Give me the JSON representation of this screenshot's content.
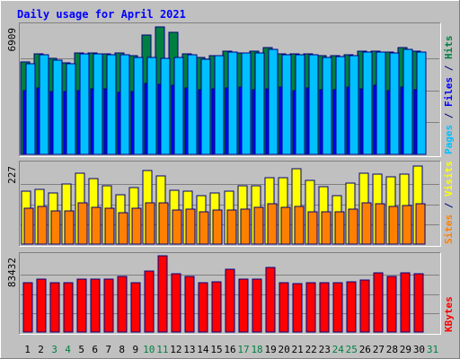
{
  "chart_data": {
    "type": "bar",
    "title": "Daily usage for April 2021",
    "categories": [
      "1",
      "2",
      "3",
      "4",
      "5",
      "6",
      "7",
      "8",
      "9",
      "10",
      "11",
      "12",
      "13",
      "14",
      "15",
      "16",
      "17",
      "18",
      "19",
      "20",
      "21",
      "22",
      "23",
      "24",
      "25",
      "26",
      "27",
      "28",
      "29",
      "30",
      "31"
    ],
    "weekend_days": [
      "3",
      "4",
      "10",
      "11",
      "17",
      "18",
      "24",
      "25",
      "31"
    ],
    "days_with_data": 30,
    "panels": [
      {
        "id": "hits-files-pages",
        "max_label": "6909",
        "ymax": 6909,
        "right_labels": [
          {
            "text": "Pages",
            "color": "#00c0ff"
          },
          {
            "text": " / ",
            "color": "#000080"
          },
          {
            "text": "Files",
            "color": "#0000ff"
          },
          {
            "text": " / ",
            "color": "#000080"
          },
          {
            "text": "Hits",
            "color": "#008040"
          }
        ],
        "series": [
          {
            "name": "Hits",
            "color": "#008040",
            "values": [
              4990,
              5400,
              5170,
              4950,
              5470,
              5470,
              5420,
              5470,
              5320,
              6450,
              6850,
              6560,
              5390,
              5230,
              5330,
              5570,
              5450,
              5560,
              5730,
              5420,
              5390,
              5420,
              5310,
              5320,
              5360,
              5550,
              5550,
              5500,
              5740,
              5550
            ]
          },
          {
            "name": "Files",
            "color": "#0000ff",
            "values": [
              3450,
              3580,
              3380,
              3380,
              3440,
              3550,
              3550,
              3350,
              3400,
              3830,
              3780,
              3720,
              3560,
              3480,
              3520,
              3580,
              3600,
              3500,
              3550,
              3600,
              3430,
              3560,
              3500,
              3460,
              3620,
              3520,
              3700,
              3450,
              3620,
              3500
            ]
          },
          {
            "name": "Pages",
            "color": "#00c0ff",
            "values": [
              4870,
              5360,
              5060,
              4870,
              5400,
              5390,
              5380,
              5360,
              5240,
              5200,
              5150,
              5200,
              5350,
              5120,
              5300,
              5500,
              5440,
              5450,
              5630,
              5380,
              5340,
              5350,
              5220,
              5250,
              5310,
              5520,
              5500,
              5480,
              5650,
              5520
            ]
          }
        ]
      },
      {
        "id": "visits-sites",
        "max_label": "227",
        "ymax": 227,
        "right_labels": [
          {
            "text": "Sites",
            "color": "#ff8000"
          },
          {
            "text": " / ",
            "color": "#000080"
          },
          {
            "text": "Visits",
            "color": "#ffff00"
          }
        ],
        "series": [
          {
            "name": "Visits",
            "color": "#ffff00",
            "values": [
              150,
              156,
              146,
              170,
              202,
              185,
              165,
              140,
              160,
              210,
              193,
              153,
              150,
              139,
              146,
              150,
              165,
              166,
              189,
              190,
              215,
              180,
              163,
              139,
              173,
              202,
              200,
              192,
              200,
              222
            ]
          },
          {
            "name": "Sites",
            "color": "#ff8000",
            "values": [
              103,
              106,
              94,
              95,
              118,
              104,
              103,
              90,
              102,
              118,
              118,
              96,
              99,
              93,
              98,
              96,
              100,
              104,
              116,
              104,
              106,
              91,
              91,
              92,
              100,
              118,
              114,
              106,
              109,
              116
            ]
          }
        ]
      },
      {
        "id": "kbytes",
        "max_label": "83432",
        "ymax": 83432,
        "right_labels": [
          {
            "text": "KBytes",
            "color": "#ff0000"
          }
        ],
        "series": [
          {
            "name": "KBytes",
            "color": "#ff0000",
            "values": [
              53500,
              58200,
              53500,
              54100,
              58200,
              58200,
              58200,
              61100,
              53500,
              66400,
              83432,
              63500,
              61100,
              53500,
              55300,
              69000,
              58200,
              58200,
              70800,
              53500,
              52900,
              54100,
              54100,
              53500,
              55300,
              57300,
              65000,
              61100,
              64800,
              63500
            ]
          }
        ]
      }
    ]
  }
}
